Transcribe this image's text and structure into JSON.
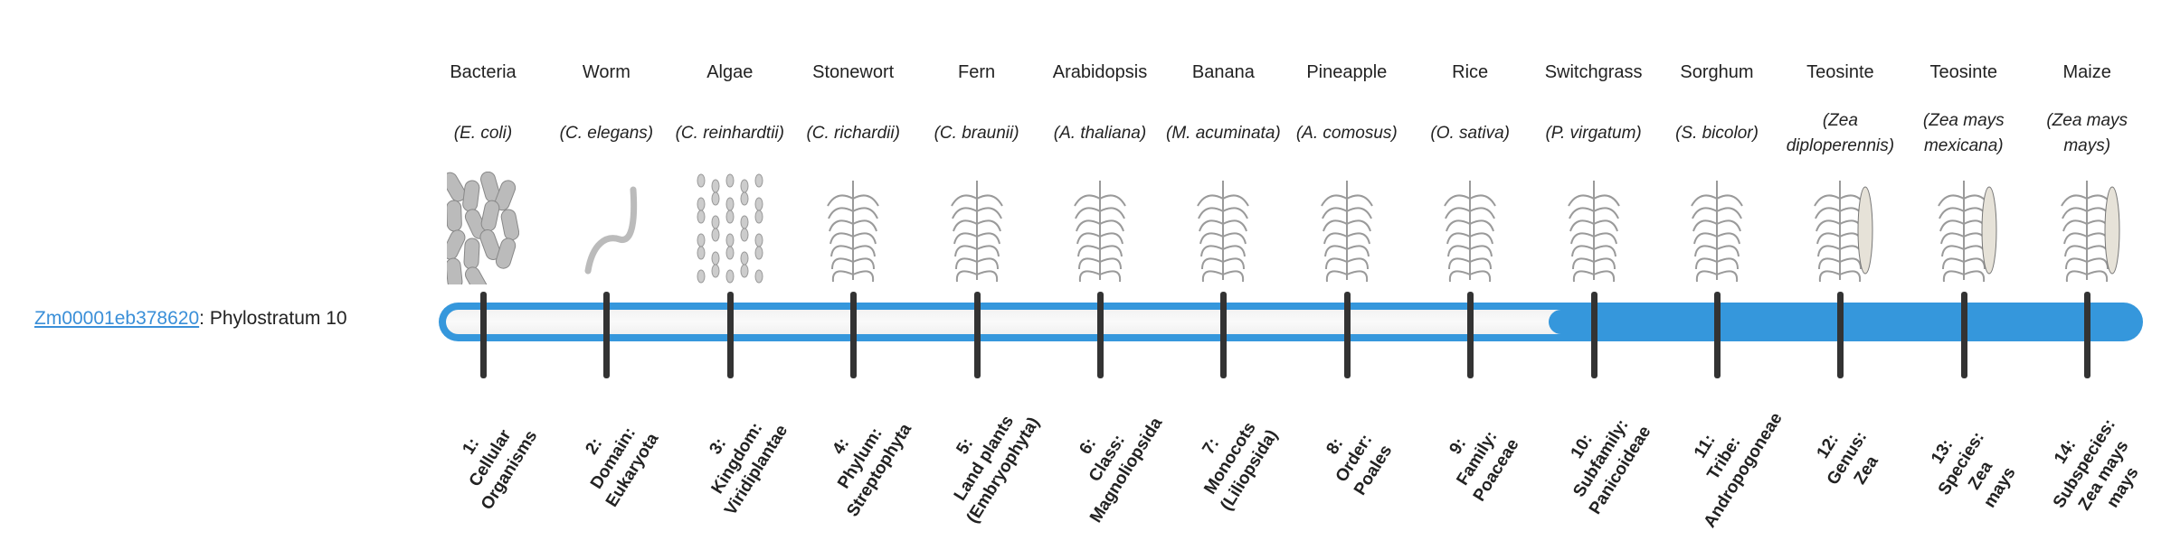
{
  "gene": {
    "id": "Zm00001eb378620",
    "suffix": ": Phylostratum 10"
  },
  "current_stratum": 10,
  "colors": {
    "accent": "#3597dc",
    "tick": "#333333",
    "link": "#3a8fd8"
  },
  "strata": [
    {
      "name": "Bacteria",
      "species": "(E. coli)",
      "icon": "bacteria-icon",
      "label": [
        "1:",
        "Cellular",
        "Organisms"
      ]
    },
    {
      "name": "Worm",
      "species": "(C. elegans)",
      "icon": "worm-icon",
      "label": [
        "2:",
        "Domain:",
        "Eukaryota"
      ]
    },
    {
      "name": "Algae",
      "species": "(C. reinhardtii)",
      "icon": "algae-icon",
      "label": [
        "3:",
        "Kingdom:",
        "Viridiplantae"
      ]
    },
    {
      "name": "Stonewort",
      "species": "(C. richardii)",
      "icon": "stonewort-icon",
      "label": [
        "4:",
        "Phylum:",
        "Streptophyta"
      ]
    },
    {
      "name": "Fern",
      "species": "(C. braunii)",
      "icon": "fern-icon",
      "label": [
        "5:",
        "Land plants",
        "(Embryophyta)"
      ]
    },
    {
      "name": "Arabidopsis",
      "species": "(A. thaliana)",
      "icon": "arabidopsis-icon",
      "label": [
        "6:",
        "Class:",
        "Magnoliopsida"
      ]
    },
    {
      "name": "Banana",
      "species": "(M. acuminata)",
      "icon": "banana-icon",
      "label": [
        "7:",
        "Monocots",
        "(Liliopsida)"
      ]
    },
    {
      "name": "Pineapple",
      "species": "(A. comosus)",
      "icon": "pineapple-icon",
      "label": [
        "8:",
        "Order:",
        "Poales"
      ]
    },
    {
      "name": "Rice",
      "species": "(O. sativa)",
      "icon": "rice-icon",
      "label": [
        "9:",
        "Family:",
        "Poaceae"
      ]
    },
    {
      "name": "Switchgrass",
      "species": "(P. virgatum)",
      "icon": "switchgrass-icon",
      "label": [
        "10:",
        "Subfamily:",
        "Panicoideae"
      ]
    },
    {
      "name": "Sorghum",
      "species": "(S. bicolor)",
      "icon": "sorghum-icon",
      "label": [
        "11:",
        "Tribe:",
        "Andropogoneae"
      ]
    },
    {
      "name": "Teosinte",
      "species": "(Zea diploperennis)",
      "icon": "teosinte-icon",
      "label": [
        "12:",
        "Genus:",
        "Zea"
      ]
    },
    {
      "name": "Teosinte",
      "species": "(Zea mays mexicana)",
      "icon": "teosinte-icon",
      "label": [
        "13:",
        "Species:",
        "Zea",
        "mays"
      ]
    },
    {
      "name": "Maize",
      "species": "(Zea mays mays)",
      "icon": "maize-icon",
      "label": [
        "14:",
        "Subspecies:",
        "Zea mays",
        "mays"
      ]
    }
  ]
}
